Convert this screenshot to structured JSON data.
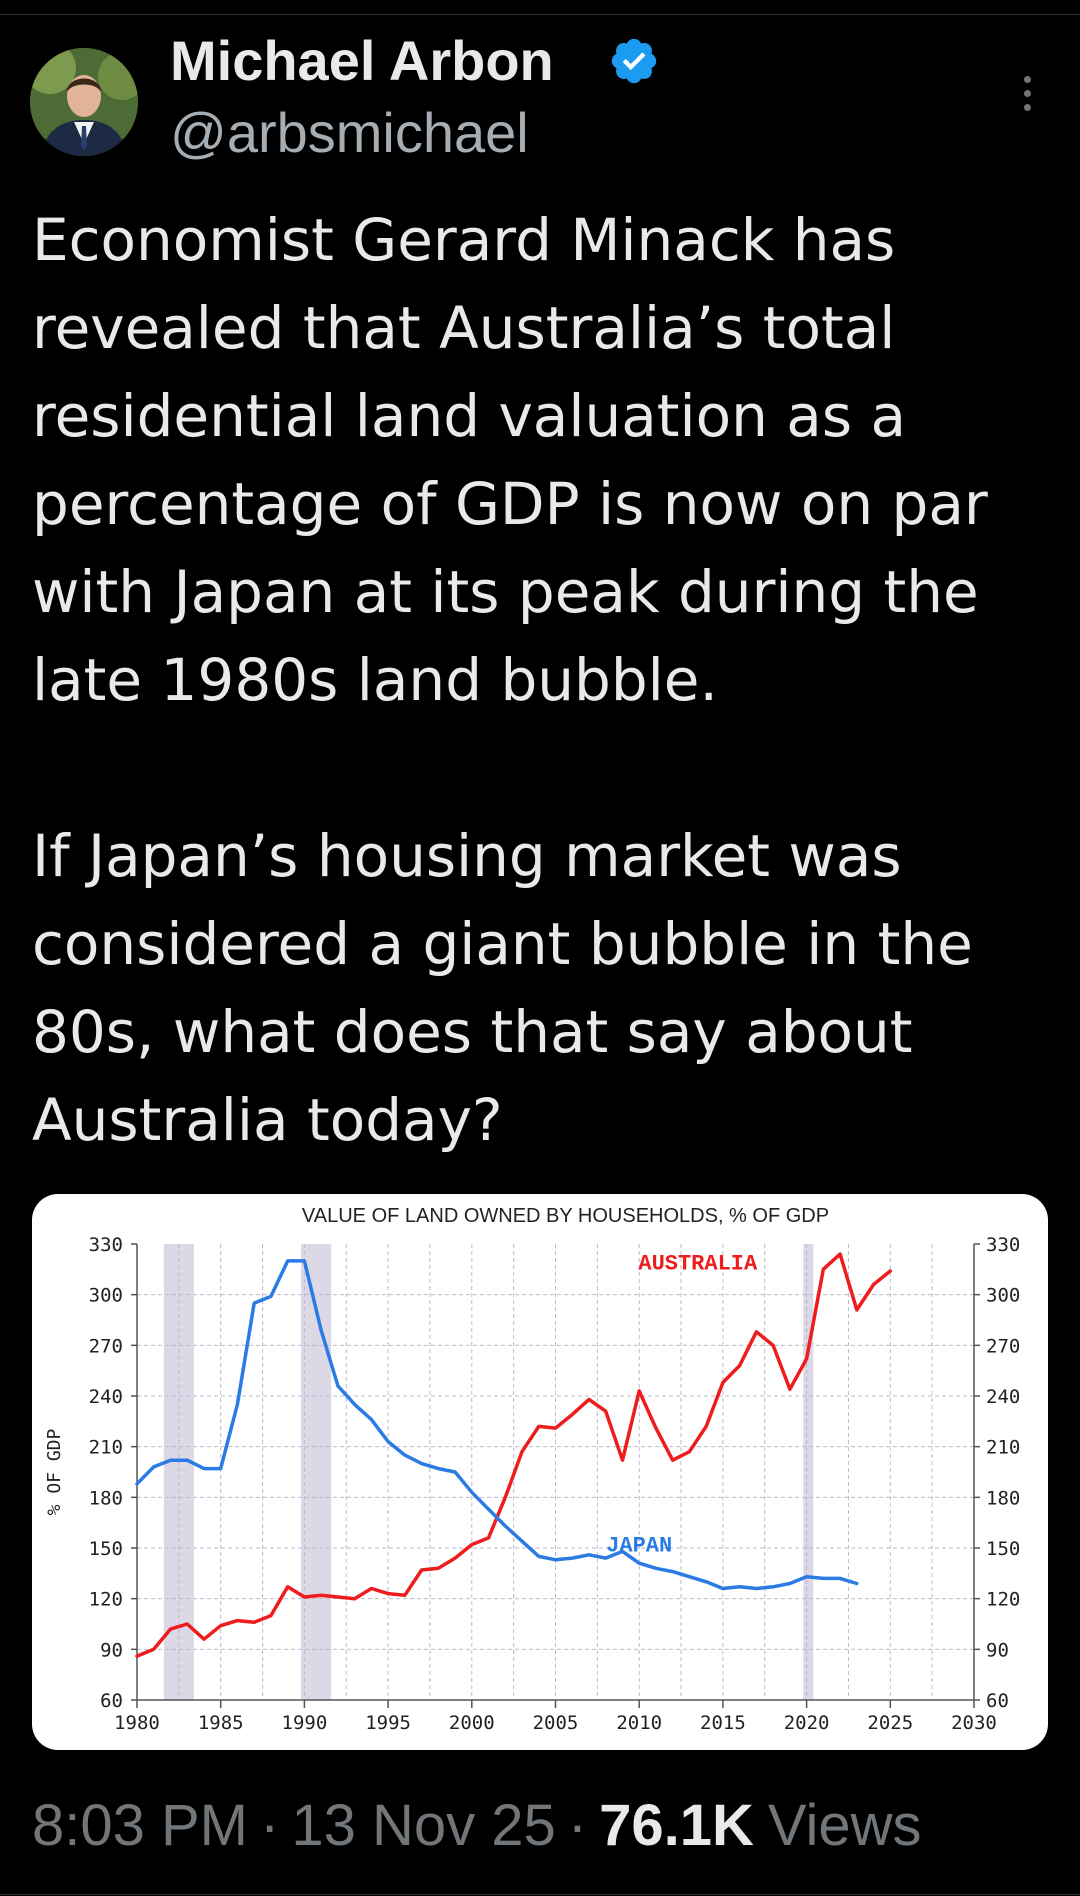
{
  "author": {
    "display_name": "Michael Arbon",
    "handle": "@arbsmichael",
    "verified": true
  },
  "icons": {
    "verified": "verified-badge-icon",
    "more": "more-vertical-icon"
  },
  "colors": {
    "verified": "#1d9bf0",
    "australia_series": "#ee1c1c",
    "japan_series": "#2a7be4",
    "recession_band": "#dcd8e6"
  },
  "tweet": {
    "paragraphs": [
      "Economist Gerard Minack has\nrevealed that Australia’s total\nresidential land valuation as a\npercentage of GDP is now on par\nwith Japan at its peak during the\nlate 1980s land bubble.",
      "If Japan’s housing market was\nconsidered a giant bubble in the\n80s, what does that say about\nAustralia today?"
    ]
  },
  "meta": {
    "time": "8:03 PM",
    "separator": "·",
    "date": "13 Nov 25",
    "views_count": "76.1K",
    "views_label": "Views"
  },
  "chart_data": {
    "type": "line",
    "title": "VALUE OF LAND OWNED BY HOUSEHOLDS, % OF GDP",
    "ylabel": "% OF GDP",
    "xlim": [
      1980,
      2030
    ],
    "ylim": [
      60,
      330
    ],
    "x_ticks": [
      "1980",
      "1985",
      "1990",
      "1995",
      "2000",
      "2005",
      "2010",
      "2015",
      "2020",
      "2025",
      "2030"
    ],
    "y_ticks": [
      "60",
      "90",
      "120",
      "150",
      "180",
      "210",
      "240",
      "270",
      "300",
      "330"
    ],
    "right_axis_mirrored": true,
    "grid": true,
    "shaded_periods": [
      [
        1981.6,
        1983.4
      ],
      [
        1989.8,
        1991.6
      ],
      [
        2019.8,
        2020.4
      ]
    ],
    "series": [
      {
        "name": "AUSTRALIA",
        "color": "#ee1c1c",
        "x": [
          1980,
          1981,
          1982,
          1983,
          1984,
          1985,
          1986,
          1987,
          1988,
          1989,
          1990,
          1991,
          1992,
          1993,
          1994,
          1995,
          1996,
          1997,
          1998,
          1999,
          2000,
          2001,
          2002,
          2003,
          2004,
          2005,
          2006,
          2007,
          2008,
          2009,
          2010,
          2011,
          2012,
          2013,
          2014,
          2015,
          2016,
          2017,
          2018,
          2019,
          2020,
          2021,
          2022,
          2023,
          2024,
          2025
        ],
        "values": [
          86,
          90,
          102,
          105,
          96,
          104,
          107,
          106,
          110,
          127,
          121,
          122,
          121,
          120,
          126,
          123,
          122,
          137,
          138,
          144,
          152,
          156,
          180,
          207,
          222,
          221,
          229,
          238,
          231,
          202,
          243,
          221,
          202,
          207,
          222,
          248,
          258,
          278,
          270,
          244,
          262,
          315,
          324,
          291,
          306,
          314
        ]
      },
      {
        "name": "JAPAN",
        "color": "#2a7be4",
        "x": [
          1980,
          1981,
          1982,
          1983,
          1984,
          1985,
          1986,
          1987,
          1988,
          1989,
          1990,
          1991,
          1992,
          1993,
          1994,
          1995,
          1996,
          1997,
          1998,
          1999,
          2000,
          2001,
          2002,
          2003,
          2004,
          2005,
          2006,
          2007,
          2008,
          2009,
          2010,
          2011,
          2012,
          2013,
          2014,
          2015,
          2016,
          2017,
          2018,
          2019,
          2020,
          2021,
          2022,
          2023
        ],
        "values": [
          188,
          198,
          202,
          202,
          197,
          197,
          235,
          295,
          299,
          320,
          320,
          279,
          246,
          235,
          226,
          213,
          205,
          200,
          197,
          195,
          183,
          173,
          163,
          154,
          145,
          143,
          144,
          146,
          144,
          148,
          141,
          138,
          136,
          133,
          130,
          126,
          127,
          126,
          127,
          129,
          133,
          132,
          132,
          129
        ]
      }
    ]
  }
}
